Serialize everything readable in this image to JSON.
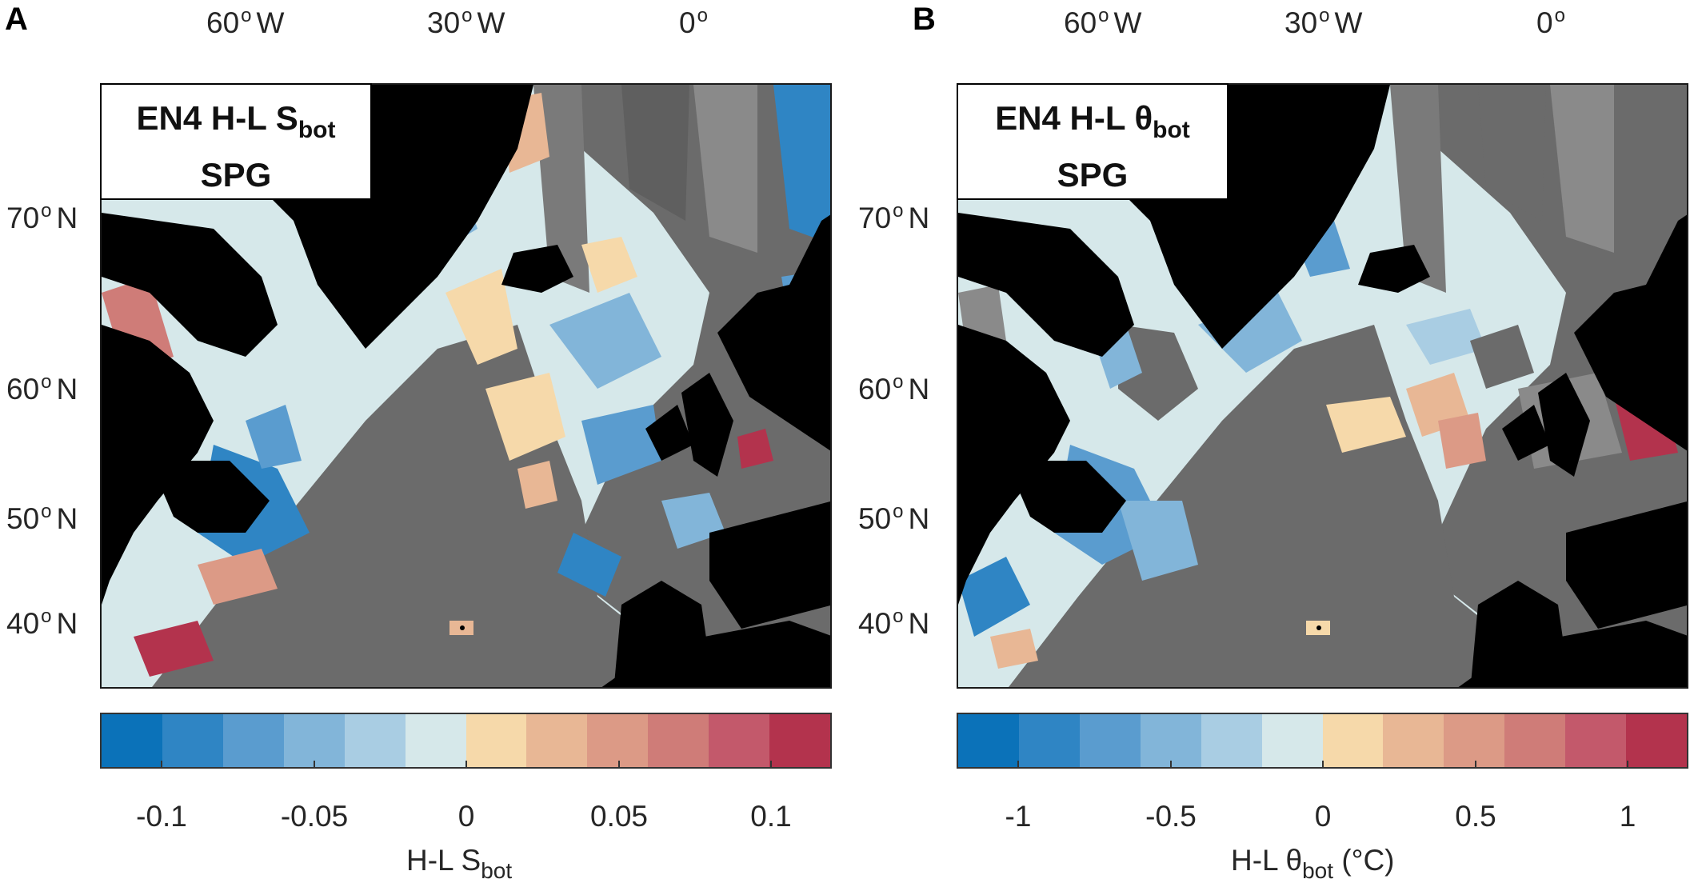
{
  "panels": [
    {
      "letter": "A",
      "title_line1": "EN4 H-L S",
      "title_sub": "bot",
      "title_line2": "SPG",
      "colorbar_ticks": [
        "-0.1",
        "-0.05",
        "0",
        "0.05",
        "0.1"
      ],
      "colorbar_label_main": "H-L S",
      "colorbar_label_sub": "bot",
      "colorbar_label_unit": ""
    },
    {
      "letter": "B",
      "title_line1": "EN4 H-L θ",
      "title_sub": "bot",
      "title_line2": "SPG",
      "colorbar_ticks": [
        "-1",
        "-0.5",
        "0",
        "0.5",
        "1"
      ],
      "colorbar_label_main": "H-L θ",
      "colorbar_label_sub": "bot",
      "colorbar_label_unit": "(°C)"
    }
  ],
  "axes": {
    "lon_labels": [
      "60",
      "W",
      "30",
      "W",
      "0",
      ""
    ],
    "lat_labels": [
      "70",
      "N",
      "60",
      "N",
      "50",
      "N",
      "40",
      "N"
    ]
  },
  "colors": {
    "land": "#000000",
    "no_data": "#6b6b6b",
    "colorbar": [
      "#0b72b9",
      "#2f85c4",
      "#5a9ccf",
      "#82b5d9",
      "#a9cde3",
      "#d6e8ea",
      "#f6d9aa",
      "#e8b795",
      "#dc9a86",
      "#cf7c78",
      "#c3596b",
      "#b3334d"
    ]
  }
}
